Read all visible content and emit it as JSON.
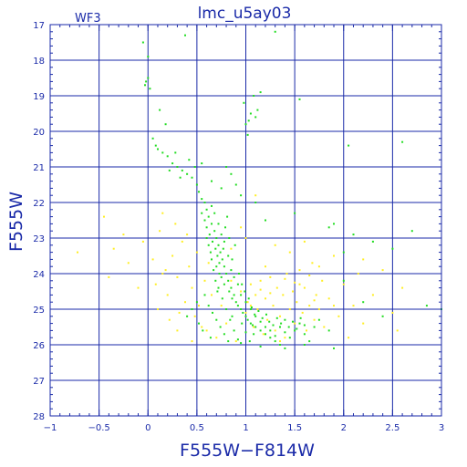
{
  "chart_data": {
    "type": "scatter",
    "title": "lmc_u5ay03",
    "corner_label": "WF3",
    "xlabel": "F555W−F814W",
    "ylabel": "F555W",
    "xlim": [
      -1,
      3
    ],
    "ylim": [
      28,
      17
    ],
    "y_inverted": true,
    "grid": true,
    "x_ticks": [
      -1,
      -0.5,
      0,
      0.5,
      1,
      1.5,
      2,
      2.5,
      3
    ],
    "x_tick_labels": [
      "−1",
      "−0.5",
      "0",
      "0.5",
      "1",
      "1.5",
      "2",
      "2.5",
      "3"
    ],
    "y_ticks": [
      17,
      18,
      19,
      20,
      21,
      22,
      23,
      24,
      25,
      26,
      27,
      28
    ],
    "y_tick_labels": [
      "17",
      "18",
      "19",
      "20",
      "21",
      "22",
      "23",
      "24",
      "25",
      "26",
      "27",
      "28"
    ],
    "colors": {
      "axes": "#1a2aa8",
      "grid": "#1a2aa8",
      "series_green": "#22dd22",
      "series_yellow": "#ffee22",
      "background": "#ffffff"
    },
    "series": [
      {
        "color": "#ffee22",
        "points": [
          [
            -0.72,
            23.4
          ],
          [
            -0.45,
            22.4
          ],
          [
            -0.4,
            24.1
          ],
          [
            -0.35,
            23.3
          ],
          [
            -0.25,
            22.9
          ],
          [
            -0.2,
            23.7
          ],
          [
            -0.1,
            24.4
          ],
          [
            -0.05,
            23.1
          ],
          [
            0.05,
            23.6
          ],
          [
            0.08,
            24.3
          ],
          [
            0.1,
            25.0
          ],
          [
            0.12,
            22.8
          ],
          [
            0.15,
            22.3
          ],
          [
            0.18,
            23.9
          ],
          [
            0.2,
            24.6
          ],
          [
            0.22,
            25.3
          ],
          [
            0.25,
            23.5
          ],
          [
            0.28,
            22.6
          ],
          [
            0.3,
            24.1
          ],
          [
            0.32,
            25.1
          ],
          [
            0.35,
            23.1
          ],
          [
            0.38,
            24.8
          ],
          [
            0.4,
            22.9
          ],
          [
            0.42,
            23.8
          ],
          [
            0.45,
            24.4
          ],
          [
            0.48,
            25.2
          ],
          [
            0.5,
            23.4
          ],
          [
            0.52,
            24.9
          ],
          [
            0.55,
            25.5
          ],
          [
            0.58,
            24.2
          ],
          [
            0.6,
            25.6
          ],
          [
            0.62,
            23.7
          ],
          [
            0.65,
            24.6
          ],
          [
            0.7,
            25.8
          ],
          [
            0.75,
            24.9
          ],
          [
            0.8,
            25.4
          ],
          [
            0.85,
            24.2
          ],
          [
            0.9,
            25.9
          ],
          [
            0.95,
            24.5
          ],
          [
            1.0,
            25.1
          ],
          [
            1.02,
            24.8
          ],
          [
            1.05,
            24.3
          ],
          [
            1.08,
            25.5
          ],
          [
            1.1,
            24.6
          ],
          [
            1.12,
            25.0
          ],
          [
            1.15,
            24.2
          ],
          [
            1.18,
            25.7
          ],
          [
            1.2,
            24.7
          ],
          [
            1.22,
            25.3
          ],
          [
            1.25,
            24.1
          ],
          [
            1.28,
            24.9
          ],
          [
            1.3,
            25.6
          ],
          [
            1.32,
            24.4
          ],
          [
            1.35,
            25.2
          ],
          [
            1.38,
            24.6
          ],
          [
            1.4,
            25.8
          ],
          [
            1.42,
            24.0
          ],
          [
            1.45,
            25.0
          ],
          [
            1.48,
            24.5
          ],
          [
            1.5,
            25.4
          ],
          [
            1.52,
            24.8
          ],
          [
            1.55,
            23.9
          ],
          [
            1.58,
            25.1
          ],
          [
            1.6,
            24.4
          ],
          [
            1.62,
            25.6
          ],
          [
            1.65,
            24.9
          ],
          [
            1.68,
            23.7
          ],
          [
            1.7,
            25.3
          ],
          [
            1.72,
            24.6
          ],
          [
            1.75,
            25.0
          ],
          [
            1.78,
            24.2
          ],
          [
            1.8,
            25.5
          ],
          [
            1.85,
            24.7
          ],
          [
            1.9,
            23.5
          ],
          [
            1.95,
            25.2
          ],
          [
            2.0,
            24.3
          ],
          [
            2.05,
            25.8
          ],
          [
            2.1,
            24.9
          ],
          [
            2.15,
            24.0
          ],
          [
            2.2,
            25.4
          ],
          [
            2.3,
            24.6
          ],
          [
            2.4,
            23.9
          ],
          [
            2.5,
            25.1
          ],
          [
            2.6,
            24.4
          ],
          [
            1.3,
            23.2
          ],
          [
            1.45,
            23.4
          ],
          [
            1.2,
            23.8
          ],
          [
            1.0,
            23.0
          ],
          [
            0.85,
            23.3
          ],
          [
            1.6,
            23.1
          ],
          [
            1.1,
            21.8
          ],
          [
            0.95,
            22.7
          ],
          [
            1.75,
            23.8
          ],
          [
            2.2,
            23.6
          ],
          [
            1.35,
            25.9
          ],
          [
            0.3,
            25.6
          ],
          [
            0.45,
            25.9
          ],
          [
            1.9,
            24.9
          ],
          [
            2.55,
            25.6
          ],
          [
            0.15,
            24.0
          ],
          [
            1.25,
            24.55
          ],
          [
            1.55,
            24.3
          ],
          [
            1.4,
            24.15
          ],
          [
            1.65,
            24.05
          ],
          [
            1.15,
            24.45
          ],
          [
            1.05,
            24.9
          ],
          [
            1.7,
            24.75
          ],
          [
            1.5,
            24.25
          ]
        ]
      },
      {
        "color": "#22dd22",
        "points": [
          [
            -0.05,
            17.5
          ],
          [
            0.0,
            17.9
          ],
          [
            0.38,
            17.3
          ],
          [
            1.3,
            17.2
          ],
          [
            -0.02,
            18.6
          ],
          [
            0.0,
            18.5
          ],
          [
            0.02,
            18.8
          ],
          [
            -0.03,
            18.7
          ],
          [
            1.0,
            19.8
          ],
          [
            1.02,
            20.1
          ],
          [
            0.98,
            19.2
          ],
          [
            1.05,
            19.5
          ],
          [
            1.08,
            19.0
          ],
          [
            1.1,
            19.6
          ],
          [
            1.12,
            19.4
          ],
          [
            1.15,
            18.9
          ],
          [
            1.03,
            19.7
          ],
          [
            1.55,
            19.1
          ],
          [
            0.12,
            19.4
          ],
          [
            0.18,
            19.8
          ],
          [
            0.05,
            20.2
          ],
          [
            0.08,
            20.4
          ],
          [
            0.1,
            20.5
          ],
          [
            0.15,
            20.6
          ],
          [
            0.2,
            20.7
          ],
          [
            0.25,
            20.9
          ],
          [
            0.3,
            21.0
          ],
          [
            0.35,
            21.1
          ],
          [
            0.4,
            21.2
          ],
          [
            0.45,
            21.3
          ],
          [
            0.5,
            21.5
          ],
          [
            0.52,
            21.7
          ],
          [
            0.55,
            21.9
          ],
          [
            0.58,
            22.0
          ],
          [
            0.6,
            22.2
          ],
          [
            0.62,
            22.4
          ],
          [
            0.65,
            22.6
          ],
          [
            0.68,
            22.8
          ],
          [
            0.7,
            23.0
          ],
          [
            0.72,
            23.2
          ],
          [
            0.74,
            23.4
          ],
          [
            0.76,
            23.6
          ],
          [
            0.78,
            23.8
          ],
          [
            0.8,
            24.0
          ],
          [
            0.82,
            24.2
          ],
          [
            0.85,
            24.4
          ],
          [
            0.88,
            24.6
          ],
          [
            0.9,
            24.8
          ],
          [
            0.95,
            25.0
          ],
          [
            1.0,
            25.2
          ],
          [
            1.05,
            25.4
          ],
          [
            1.1,
            25.5
          ],
          [
            1.15,
            25.6
          ],
          [
            1.2,
            25.7
          ],
          [
            1.25,
            25.8
          ],
          [
            1.3,
            25.9
          ],
          [
            1.35,
            26.0
          ],
          [
            0.55,
            22.3
          ],
          [
            0.58,
            22.5
          ],
          [
            0.6,
            22.7
          ],
          [
            0.63,
            22.9
          ],
          [
            0.66,
            23.1
          ],
          [
            0.69,
            23.3
          ],
          [
            0.71,
            23.5
          ],
          [
            0.73,
            23.7
          ],
          [
            0.6,
            23.0
          ],
          [
            0.62,
            23.2
          ],
          [
            0.64,
            23.4
          ],
          [
            0.7,
            23.8
          ],
          [
            0.75,
            24.1
          ],
          [
            0.78,
            24.3
          ],
          [
            0.83,
            24.5
          ],
          [
            0.86,
            24.7
          ],
          [
            0.92,
            24.9
          ],
          [
            0.97,
            25.1
          ],
          [
            1.02,
            25.3
          ],
          [
            1.07,
            25.45
          ],
          [
            0.65,
            22.1
          ],
          [
            0.68,
            22.3
          ],
          [
            0.72,
            22.6
          ],
          [
            0.75,
            22.9
          ],
          [
            0.78,
            23.1
          ],
          [
            0.82,
            23.5
          ],
          [
            0.85,
            23.9
          ],
          [
            0.88,
            24.1
          ],
          [
            0.92,
            24.3
          ],
          [
            0.95,
            24.6
          ],
          [
            1.0,
            24.8
          ],
          [
            1.05,
            25.0
          ],
          [
            1.1,
            25.2
          ],
          [
            1.15,
            25.35
          ],
          [
            1.2,
            25.5
          ],
          [
            1.25,
            25.6
          ],
          [
            1.3,
            25.75
          ],
          [
            1.35,
            25.5
          ],
          [
            1.4,
            25.65
          ],
          [
            1.45,
            25.8
          ],
          [
            1.5,
            25.6
          ],
          [
            1.55,
            25.4
          ],
          [
            1.6,
            25.7
          ],
          [
            1.65,
            25.9
          ],
          [
            1.7,
            25.5
          ],
          [
            0.58,
            24.6
          ],
          [
            0.62,
            24.9
          ],
          [
            0.66,
            25.1
          ],
          [
            0.7,
            25.3
          ],
          [
            0.74,
            25.5
          ],
          [
            0.78,
            25.7
          ],
          [
            0.82,
            25.9
          ],
          [
            0.86,
            25.2
          ],
          [
            0.5,
            24.8
          ],
          [
            0.45,
            25.0
          ],
          [
            0.4,
            25.2
          ],
          [
            0.52,
            25.4
          ],
          [
            0.56,
            25.6
          ],
          [
            0.64,
            25.8
          ],
          [
            0.72,
            24.4
          ],
          [
            0.76,
            24.7
          ],
          [
            0.8,
            25.0
          ],
          [
            0.84,
            25.3
          ],
          [
            0.88,
            25.6
          ],
          [
            0.92,
            25.85
          ],
          [
            0.96,
            25.4
          ],
          [
            1.0,
            25.65
          ],
          [
            1.04,
            25.9
          ],
          [
            1.08,
            25.7
          ],
          [
            0.9,
            21.5
          ],
          [
            0.95,
            21.8
          ],
          [
            0.85,
            21.2
          ],
          [
            0.75,
            21.6
          ],
          [
            0.8,
            21.0
          ],
          [
            0.65,
            21.4
          ],
          [
            0.42,
            20.8
          ],
          [
            0.48,
            21.0
          ],
          [
            0.33,
            21.3
          ],
          [
            0.28,
            20.6
          ],
          [
            0.22,
            21.1
          ],
          [
            0.55,
            20.9
          ],
          [
            1.1,
            22.0
          ],
          [
            1.2,
            22.5
          ],
          [
            1.5,
            22.3
          ],
          [
            1.85,
            22.7
          ],
          [
            2.0,
            23.4
          ],
          [
            2.1,
            22.9
          ],
          [
            2.3,
            23.1
          ],
          [
            2.5,
            23.3
          ],
          [
            2.7,
            22.8
          ],
          [
            2.85,
            24.9
          ],
          [
            1.9,
            22.6
          ],
          [
            2.05,
            20.4
          ],
          [
            2.6,
            20.3
          ],
          [
            1.9,
            26.1
          ],
          [
            2.0,
            24.2
          ],
          [
            2.2,
            24.8
          ],
          [
            2.4,
            25.2
          ],
          [
            3.0,
            25.0
          ],
          [
            1.4,
            26.1
          ],
          [
            1.15,
            26.05
          ],
          [
            0.95,
            25.95
          ],
          [
            1.6,
            26.0
          ],
          [
            1.75,
            25.3
          ],
          [
            1.85,
            25.6
          ],
          [
            0.65,
            23.6
          ],
          [
            0.67,
            23.9
          ],
          [
            0.69,
            24.2
          ],
          [
            0.71,
            24.5
          ],
          [
            0.73,
            24.0
          ],
          [
            0.77,
            23.3
          ],
          [
            0.79,
            22.7
          ],
          [
            0.81,
            22.4
          ],
          [
            0.83,
            23.0
          ],
          [
            0.86,
            23.6
          ],
          [
            0.89,
            23.2
          ],
          [
            0.93,
            24.0
          ],
          [
            0.96,
            24.3
          ],
          [
            0.99,
            24.5
          ],
          [
            1.03,
            24.7
          ],
          [
            1.06,
            24.95
          ],
          [
            1.09,
            25.15
          ],
          [
            1.13,
            25.05
          ],
          [
            1.17,
            25.25
          ],
          [
            1.21,
            25.15
          ],
          [
            1.24,
            25.35
          ],
          [
            1.28,
            25.45
          ],
          [
            1.32,
            25.25
          ],
          [
            1.36,
            25.4
          ],
          [
            1.4,
            25.3
          ],
          [
            1.44,
            25.5
          ],
          [
            1.48,
            25.35
          ],
          [
            1.52,
            25.55
          ],
          [
            1.56,
            25.25
          ],
          [
            1.6,
            25.45
          ]
        ]
      }
    ]
  }
}
